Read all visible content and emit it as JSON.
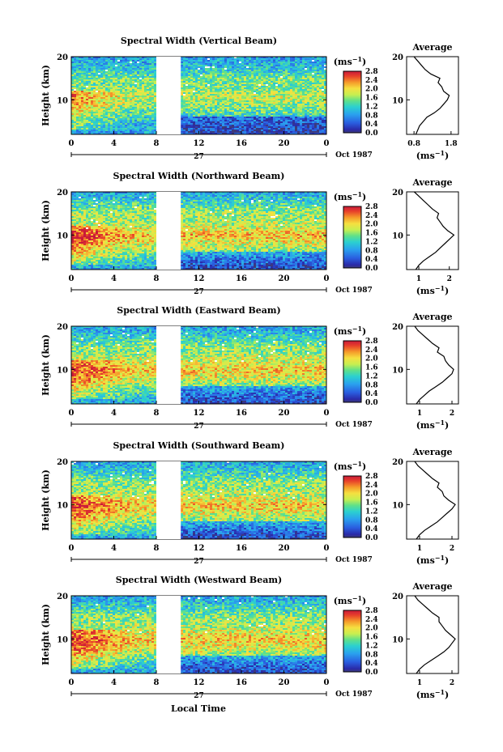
{
  "figure": {
    "xlabel_bottom": "Local Time",
    "date_label": "Oct 1987",
    "day_label": "27",
    "colorbar_unit": "(ms",
    "colorbar_unit_sup": "−1",
    "colorbar_unit_close": ")",
    "colorbar_ticks": [
      "0.0",
      "0.4",
      "0.8",
      "1.2",
      "1.6",
      "2.0",
      "2.4",
      "2.8"
    ],
    "height_label": "Height (km)",
    "average_title": "Average",
    "average_xlabel": "(ms",
    "average_xlabel_sup": "−1",
    "average_xlabel_close": ")"
  },
  "chart_data": [
    {
      "type": "heatmap",
      "title": "Spectral Width (Vertical Beam)",
      "xlabel": "",
      "ylabel": "Height (km)",
      "xticks": [
        "0",
        "4",
        "8",
        "12",
        "16",
        "20",
        "0"
      ],
      "yticks": [
        "10",
        "20"
      ],
      "x_range_hours": [
        0,
        24
      ],
      "y_range_km": [
        2,
        20
      ],
      "data_gap_hours": [
        8,
        10.3
      ],
      "colorbar_range": [
        0,
        2.8
      ],
      "average_profile": {
        "xticks": [
          "0.8",
          "1.8"
        ],
        "x_range": [
          0.6,
          2.0
        ],
        "height_km": [
          2,
          3,
          4,
          5,
          6,
          7,
          8,
          9,
          10,
          11,
          12,
          13,
          14,
          15,
          16,
          17,
          18,
          19,
          20
        ],
        "width_ms": [
          0.85,
          0.9,
          0.95,
          1.05,
          1.15,
          1.35,
          1.5,
          1.6,
          1.7,
          1.75,
          1.6,
          1.55,
          1.45,
          1.5,
          1.25,
          1.1,
          1.0,
          0.9,
          0.8
        ]
      }
    },
    {
      "type": "heatmap",
      "title": "Spectral Width (Northward Beam)",
      "xlabel": "",
      "ylabel": "Height (km)",
      "xticks": [
        "0",
        "4",
        "8",
        "12",
        "16",
        "20",
        "0"
      ],
      "yticks": [
        "10",
        "20"
      ],
      "x_range_hours": [
        0,
        24
      ],
      "y_range_km": [
        2,
        20
      ],
      "data_gap_hours": [
        8,
        10.3
      ],
      "colorbar_range": [
        0,
        2.8
      ],
      "average_profile": {
        "xticks": [
          "1",
          "2"
        ],
        "x_range": [
          0.6,
          2.3
        ],
        "height_km": [
          2,
          3,
          4,
          5,
          6,
          7,
          8,
          9,
          10,
          11,
          12,
          13,
          14,
          15,
          16,
          17,
          18,
          19,
          20
        ],
        "width_ms": [
          0.9,
          1.0,
          1.15,
          1.35,
          1.55,
          1.7,
          1.85,
          2.0,
          2.15,
          1.95,
          1.8,
          1.7,
          1.6,
          1.65,
          1.45,
          1.3,
          1.15,
          1.0,
          0.85
        ]
      }
    },
    {
      "type": "heatmap",
      "title": "Spectral Width (Eastward Beam)",
      "xlabel": "",
      "ylabel": "Height (km)",
      "xticks": [
        "0",
        "4",
        "8",
        "12",
        "16",
        "20",
        "0"
      ],
      "yticks": [
        "10",
        "20"
      ],
      "x_range_hours": [
        0,
        24
      ],
      "y_range_km": [
        2,
        20
      ],
      "data_gap_hours": [
        8,
        10.3
      ],
      "colorbar_range": [
        0,
        2.8
      ],
      "average_profile": {
        "xticks": [
          "1",
          "2"
        ],
        "x_range": [
          0.6,
          2.2
        ],
        "height_km": [
          2,
          3,
          4,
          5,
          6,
          7,
          8,
          9,
          10,
          11,
          12,
          13,
          14,
          15,
          16,
          17,
          18,
          19,
          20
        ],
        "width_ms": [
          0.9,
          1.0,
          1.15,
          1.3,
          1.5,
          1.7,
          1.85,
          2.0,
          2.05,
          1.9,
          1.8,
          1.75,
          1.55,
          1.6,
          1.4,
          1.25,
          1.1,
          0.95,
          0.85
        ]
      }
    },
    {
      "type": "heatmap",
      "title": "Spectral Width (Southward Beam)",
      "xlabel": "",
      "ylabel": "Height (km)",
      "xticks": [
        "0",
        "4",
        "8",
        "12",
        "16",
        "20",
        "0"
      ],
      "yticks": [
        "10",
        "20"
      ],
      "x_range_hours": [
        0,
        24
      ],
      "y_range_km": [
        2,
        20
      ],
      "data_gap_hours": [
        8,
        10.3
      ],
      "colorbar_range": [
        0,
        2.8
      ],
      "average_profile": {
        "xticks": [
          "1",
          "2"
        ],
        "x_range": [
          0.6,
          2.2
        ],
        "height_km": [
          2,
          3,
          4,
          5,
          6,
          7,
          8,
          9,
          10,
          11,
          12,
          13,
          14,
          15,
          16,
          17,
          18,
          19,
          20
        ],
        "width_ms": [
          0.9,
          1.0,
          1.15,
          1.35,
          1.55,
          1.7,
          1.85,
          2.0,
          2.1,
          1.9,
          1.75,
          1.7,
          1.55,
          1.6,
          1.4,
          1.25,
          1.1,
          0.95,
          0.85
        ]
      }
    },
    {
      "type": "heatmap",
      "title": "Spectral Width (Westward Beam)",
      "xlabel": "Local Time",
      "ylabel": "Height (km)",
      "xticks": [
        "0",
        "4",
        "8",
        "12",
        "16",
        "20",
        "0"
      ],
      "yticks": [
        "10",
        "20"
      ],
      "x_range_hours": [
        0,
        24
      ],
      "y_range_km": [
        2,
        20
      ],
      "data_gap_hours": [
        8,
        10.3
      ],
      "colorbar_range": [
        0,
        2.8
      ],
      "average_profile": {
        "xticks": [
          "1",
          "2"
        ],
        "x_range": [
          0.6,
          2.2
        ],
        "height_km": [
          2,
          3,
          4,
          5,
          6,
          7,
          8,
          9,
          10,
          11,
          12,
          13,
          14,
          15,
          16,
          17,
          18,
          19,
          20
        ],
        "width_ms": [
          0.9,
          1.0,
          1.15,
          1.35,
          1.55,
          1.75,
          1.9,
          2.0,
          2.1,
          1.95,
          1.8,
          1.7,
          1.6,
          1.6,
          1.4,
          1.25,
          1.1,
          0.95,
          0.85
        ]
      }
    }
  ]
}
